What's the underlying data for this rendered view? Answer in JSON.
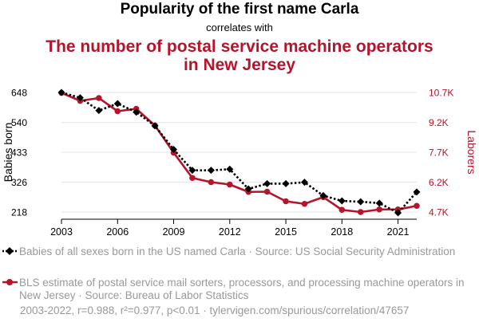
{
  "header": {
    "title": "Popularity of the first name Carla",
    "subtitle": "correlates with",
    "title2": "The number of postal service machine operators in New Jersey"
  },
  "colors": {
    "series1": "#000000",
    "series2": "#b5142a",
    "grid": "#e6e6e6"
  },
  "chart_data": {
    "type": "line",
    "x": [
      2003,
      2004,
      2005,
      2006,
      2007,
      2008,
      2009,
      2010,
      2011,
      2012,
      2013,
      2014,
      2015,
      2016,
      2017,
      2018,
      2019,
      2020,
      2021,
      2022
    ],
    "xticks": [
      2003,
      2006,
      2009,
      2012,
      2015,
      2018,
      2021
    ],
    "xlim": [
      2003,
      2022
    ],
    "y_left": {
      "label": "Babies born",
      "ticks": [
        218,
        326,
        433,
        540,
        648
      ],
      "tick_labels": [
        "218",
        "326",
        "433",
        "540",
        "648"
      ],
      "lim": [
        218,
        648
      ]
    },
    "y_right": {
      "label": "Laborers",
      "ticks": [
        4700,
        6200,
        7700,
        9200,
        10700
      ],
      "tick_labels": [
        "4.7K",
        "6.2K",
        "7.7K",
        "9.2K",
        "10.7K"
      ],
      "lim": [
        4700,
        10700
      ]
    },
    "series": [
      {
        "name": "Babies of all sexes born in the US named Carla",
        "axis": "left",
        "style": "dotted",
        "marker": "diamond",
        "values": [
          648,
          629,
          583,
          608,
          577,
          528,
          443,
          368,
          368,
          372,
          301,
          320,
          320,
          325,
          277,
          258,
          255,
          250,
          215,
          290
        ]
      },
      {
        "name": "BLS estimate of postal service mail sorters, processors, and processing machine operators in New Jersey",
        "axis": "right",
        "style": "solid",
        "marker": "circle",
        "values": [
          10680,
          10280,
          10420,
          9760,
          9880,
          9040,
          7680,
          6410,
          6200,
          6080,
          5710,
          5720,
          5240,
          5110,
          5450,
          4810,
          4700,
          4830,
          4830,
          5010
        ]
      }
    ]
  },
  "legend": {
    "items": [
      {
        "text": "Babies of all sexes born in the US named Carla · Source: US Social Security Administration"
      },
      {
        "text": "BLS estimate of postal service mail sorters, processors, and processing machine operators in New Jersey · Source: Bureau of Labor Statistics"
      }
    ]
  },
  "footer": "2003-2022, r=0.988, r²=0.977, p<0.01 · tylervigen.com/spurious/correlation/47657"
}
